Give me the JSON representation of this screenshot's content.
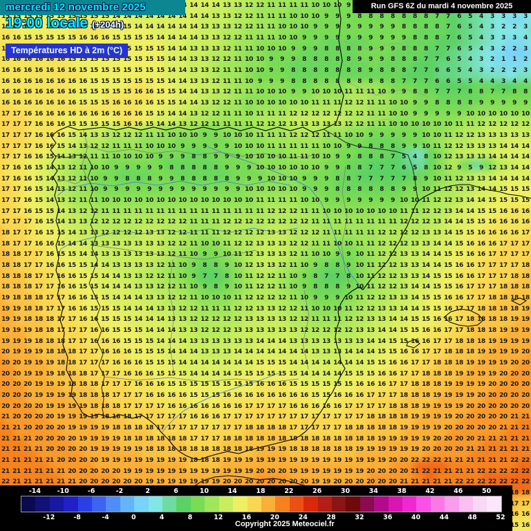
{
  "header": {
    "date_line": "mercredi 12 novembre 2025",
    "time_line": "19:00 locale",
    "time_offset": "(+204h)",
    "variable_label": "Températures HD à 2m (°C)",
    "run_label": "Run GFS 6Z du mardi 4 novembre 2025"
  },
  "footer": {
    "copyright": "Copyright 2025 Meteociel.fr"
  },
  "colors": {
    "header_text": "#00eaff",
    "date_banner_bg": "#0c8791",
    "variable_banner_bg": "#2633cf",
    "variable_banner_text": "#e6fbff",
    "run_banner_bg": "#000000",
    "run_banner_text": "#ffffff",
    "panel_bg": "#000000",
    "tick_text": "#ffffff",
    "number_text": "#1a1a1a",
    "coast_line": "#000000",
    "border_line": "#222222",
    "region_line": "#777777",
    "river_line": "#3a7bd5"
  },
  "scale": {
    "min": -16,
    "step": 2,
    "top_ticks": [
      -14,
      -10,
      -6,
      -2,
      2,
      6,
      10,
      14,
      18,
      22,
      26,
      30,
      34,
      38,
      42,
      46,
      50
    ],
    "bottom_ticks": [
      -12,
      -8,
      -4,
      0,
      4,
      8,
      12,
      16,
      20,
      24,
      28,
      32,
      36,
      40,
      44,
      48,
      52
    ],
    "cell_colors": [
      "#0a0a50",
      "#111178",
      "#1818a0",
      "#2020c8",
      "#2840e6",
      "#3c64f0",
      "#508cf5",
      "#64b4fa",
      "#78d2fa",
      "#82e6e6",
      "#6edca0",
      "#5ad264",
      "#78dc55",
      "#a0e65a",
      "#c8ee5f",
      "#eef064",
      "#fad750",
      "#faaf37",
      "#f5821e",
      "#eb5014",
      "#dc280a",
      "#b41e14",
      "#8c1414",
      "#6e0a0a",
      "#8c0a50",
      "#b40a8c",
      "#dc14b4",
      "#f028d2",
      "#fa50e6",
      "#fa78e6",
      "#fa9bed",
      "#fabef0",
      "#fad7f5",
      "#fae6fa"
    ]
  },
  "map": {
    "cols": 48,
    "grid_rows": [
      "15 15 15 15 15 15 15 15 15 15 14 14 14 14 14 14 14 14 14 14 13 13 12 12 11 11 11 11 10 10 10 9 9 8 8 8 7 7 6 6 5 5 4 4 4 4 4 4",
      "15 15 15 15 15 15 15 15 15 15 14 14 14 14 14 14 14 14 14 13 13 12 12 11 11 11 10 10 10 9 9 9 8 8 8 8 8 8 8 7 7 6 5 4 3 3 3 3",
      "15 15 15 15 15 15 15 16 16 15 15 15 14 14 14 14 14 14 13 13 13 12 12 11 11 10 10 10 9 9 9 9 9 9 9 9 8 8 8 8 7 6 5 4 3 2 2 3",
      "16 16 15 15 15 15 15 16 16 16 15 15 15 15 14 14 14 14 13 13 12 12 11 11 11 10 10 9 9 9 9 9 9 9 9 9 9 8 8 8 7 6 5 4 3 3 3 4",
      "16 16 16 16 16 15 15 15 15 15 15 15 15 15 15 14 14 13 13 13 12 11 11 10 10 10 9 9 9 8 8 8 8 9 9 9 8 8 8 7 7 6 5 4 3 2 2 3",
      "16 16 16 16 16 16 15 15 15 15 15 15 15 15 15 14 14 13 13 12 12 11 10 10 9 9 9 8 8 8 8 8 9 9 9 8 8 8 7 7 6 5 4 3 2 1 1 2",
      "16 16 16 16 16 16 16 15 15 15 15 15 15 15 15 14 14 13 13 12 11 11 10 10 9 9 8 8 8 8 8 8 8 9 8 8 8 7 7 6 6 5 4 3 2 2 2 3",
      "16 16 16 16 16 16 16 16 15 15 15 15 15 15 15 14 14 13 13 12 11 11 10 9 9 9 8 8 8 8 8 8 8 8 8 8 7 7 7 6 6 5 5 4 4 3 4 4",
      "16 16 16 16 16 16 16 15 15 15 15 15 16 16 15 15 14 14 13 13 12 11 11 10 10 10 9 9 10 10 10 11 11 11 10 9 9 8 8 7 7 7 8 8 7 7 8 8",
      "16 16 16 16 16 16 16 15 15 15 16 16 16 16 15 15 14 14 13 12 12 11 10 10 10 10 10 10 11 11 11 12 12 11 11 10 10 9 9 8 8 8 8 9 9 9 9 9",
      "17 17 16 16 16 16 16 16 16 16 16 16 16 15 15 14 14 13 12 12 11 11 10 11 11 11 12 12 12 12 12 12 12 11 11 10 10 9 9 9 9 9 10 10 10 10 10 10",
      "17 17 17 16 16 16 15 15 15 15 15 16 16 15 14 14 13 12 12 11 11 11 11 12 12 12 13 13 13 13 13 12 12 11 11 10 10 10 10 10 10 11 11 12 12 12 12 12",
      "17 17 17 16 16 16 15 14 13 13 12 12 12 11 11 10 10 10 9 9 10 10 10 11 11 11 12 12 12 11 11 10 10 9 9 9 9 9 10 10 11 12 12 13 13 13 13 13",
      "17 17 17 16 16 15 14 13 12 12 11 11 11 10 10 10 9 9 9 9 9 10 10 10 11 11 11 11 11 10 10 9 9 8 8 8 9 9 10 11 12 12 13 13 13 14 14 14",
      "17 17 16 16 15 14 13 12 11 11 10 10 10 10 9 9 9 8 8 9 9 9 10 10 10 10 11 11 10 10 9 9 8 8 8 7 5 4 8 10 12 13 13 13 14 14 14 14",
      "17 16 16 15 14 13 12 11 10 10 9 9 9 9 9 8 8 8 8 8 9 9 9 10 10 10 10 10 10 9 9 8 8 7 7 7 6 5 8 10 12 9 5 9 12 13 14 14",
      "17 16 16 15 14 13 12 11 10 9 9 8 8 8 9 9 8 8 8 8 8 9 9 9 10 10 10 9 9 9 8 8 7 7 7 7 7 8 9 10 11 12 13 13 14 14 14 14",
      "17 17 16 15 14 13 12 11 10 9 9 9 9 9 9 9 9 9 9 9 9 9 10 10 10 10 10 9 9 9 8 8 8 8 8 8 9 9 10 11 12 12 13 14 14 15 15 15",
      "17 17 16 15 14 13 12 11 11 10 10 10 10 10 10 10 10 10 10 10 10 10 10 11 11 11 11 10 10 9 9 9 9 9 9 9 10 10 11 12 12 13 14 14 15 15 15 15",
      "17 17 16 15 15 14 13 12 12 11 11 11 11 11 11 11 11 11 11 11 11 11 11 11 12 12 12 11 11 10 10 10 10 10 10 10 11 11 12 12 13 14 14 15 15 16 16 16",
      "17 17 17 16 15 14 13 13 12 12 12 12 12 12 12 12 12 11 11 11 12 12 12 12 12 12 12 12 11 11 11 11 11 11 11 11 12 12 12 13 14 14 15 15 16 16 16 16",
      "18 17 17 16 15 15 14 13 13 12 12 12 12 13 13 12 12 11 11 11 12 12 12 12 13 13 12 12 12 11 11 11 11 11 12 12 12 12 13 13 14 15 15 16 16 16 16 17",
      "18 17 17 16 16 15 14 14 13 13 13 13 13 13 13 12 12 11 10 10 11 12 12 13 13 13 12 12 11 11 10 10 11 11 12 12 12 13 13 14 14 15 16 16 16 17 17 17",
      "18 18 17 17 16 15 15 14 14 13 13 13 13 13 13 12 11 10 9 9 10 11 12 13 13 13 12 11 10 10 9 9 10 11 12 12 13 13 14 14 15 15 16 16 17 17 17 17",
      "18 18 17 17 16 16 15 15 14 14 13 13 13 13 12 11 10 9 8 8 9 10 12 13 13 12 11 10 9 8 8 9 10 11 12 12 13 13 14 14 15 16 16 17 17 17 17 18",
      "18 18 18 17 17 16 16 15 15 14 14 13 13 12 12 11 10 9 7 7 8 10 11 12 12 11 10 9 8 7 7 8 10 11 12 12 13 13 14 15 15 16 16 17 17 17 18 18",
      "18 18 18 17 17 16 16 15 15 14 14 14 13 13 12 12 11 10 9 8 9 10 11 12 12 11 10 9 8 8 8 9 10 11 12 12 13 14 14 15 15 16 17 17 17 18 18 18",
      "19 18 18 18 17 17 16 16 15 15 14 14 14 13 13 12 12 11 10 10 10 11 12 12 12 12 11 10 9 9 9 10 11 12 12 13 13 14 15 15 16 16 17 17 18 18 18 18",
      "19 19 18 18 17 17 16 16 15 15 15 14 14 14 13 13 12 12 11 11 11 12 12 13 13 12 12 11 10 10 10 11 12 12 13 13 14 14 15 15 16 17 17 18 18 18 18 19",
      "19 19 18 18 18 17 17 16 16 15 15 15 14 14 14 13 13 12 12 12 12 12 13 13 13 13 12 12 11 11 11 12 12 13 13 14 14 15 15 16 16 17 18 18 18 18 19 19",
      "19 19 19 18 18 17 17 17 16 16 15 15 15 14 14 14 13 13 12 12 12 13 13 13 13 13 13 12 12 12 12 12 13 13 14 14 15 15 16 16 17 17 18 18 18 19 19 19",
      "19 19 19 18 18 18 17 17 16 16 16 15 15 15 14 14 14 13 13 13 13 13 13 14 14 14 13 13 13 13 13 13 13 14 14 15 15 16 16 17 17 18 18 18 19 19 19 19",
      "20 19 19 19 18 18 18 17 17 16 16 16 15 15 15 14 14 14 13 13 13 14 14 14 14 14 14 14 13 13 13 14 14 14 15 15 16 16 17 17 18 18 18 19 19 19 19 20",
      "20 20 19 19 19 18 18 17 17 17 16 16 16 15 15 15 14 14 14 14 14 14 14 15 15 15 14 14 14 14 14 14 14 15 15 16 16 17 17 18 18 18 19 19 19 19 20 20",
      "20 20 19 19 19 18 18 18 17 17 17 16 16 16 15 15 15 14 14 14 14 15 15 15 15 15 15 14 14 14 14 15 15 15 16 16 17 17 18 18 18 19 19 19 19 20 20 20",
      "20 20 20 19 19 19 18 18 18 17 17 17 16 16 16 15 15 15 15 15 15 15 15 16 16 16 15 15 15 15 15 15 16 16 16 17 17 18 18 18 19 19 19 19 20 20 20 20",
      "20 20 20 19 19 19 19 18 18 18 17 17 17 16 16 16 16 15 15 15 16 16 16 16 16 16 16 16 15 15 16 16 16 17 17 17 18 18 18 19 19 19 19 20 20 20 20 20",
      "20 20 20 20 19 19 19 19 18 18 18 17 17 17 17 16 16 16 16 16 16 16 17 17 17 17 16 16 16 16 16 17 17 17 17 18 18 18 19 19 19 19 20 20 20 20 20 20",
      "21 20 20 20 20 19 19 19 19 18 18 18 17 17 17 17 17 16 16 16 17 17 17 17 17 17 17 17 17 17 17 17 17 18 18 18 18 19 19 19 19 20 20 20 20 20 21 21",
      "21 21 20 20 20 20 19 19 19 19 18 18 18 18 17 17 17 17 17 17 17 17 18 18 18 18 17 17 17 17 17 18 18 18 18 18 19 19 19 19 20 20 20 20 20 21 21 21",
      "21 21 21 20 20 20 20 19 19 19 19 18 18 18 18 18 18 17 17 17 18 18 18 18 18 18 18 18 18 18 18 18 18 18 19 19 19 19 19 20 20 20 20 21 21 21 21 21",
      "21 21 21 21 20 20 20 20 19 19 19 19 19 18 18 18 18 18 18 18 18 18 18 19 19 19 18 18 18 18 18 18 19 19 19 19 19 19 20 20 20 20 21 21 21 21 21 21",
      "21 21 21 21 21 20 20 20 20 19 19 19 19 19 19 19 19 18 18 18 19 19 19 19 19 19 19 19 19 19 19 19 19 19 19 20 20 22 22 22 21 21 21 21 21 21 22 22",
      "21 21 21 21 21 21 20 20 20 20 20 19 19 19 19 19 19 19 19 19 19 19 19 20 20 20 19 19 19 19 19 19 19 20 20 20 20 21 22 21 21 21 21 22 22 22 22 22",
      "22 21 21 21 21 21 21 20 20 20 20 20 20 19 19 19 19 19 19 19 20 20 20 20 20 20 20 20 19 19 20 20 20 20 20 20 21 21 21 21 21 22 22 22 22 22 22 22",
      "22 22 21 21 21 21 21 21 20 20 20 20 20 20 20 19 19 19 20 20 20 20 20 21 21 21 20 20 20 20 20 20 20 20 21 21 21 21 21 21 21 22 22 22 19 19 18 18",
      "22 22 22 21 21 21 21 21 21 20 20 20 20 20 20 20 20 20 20 20 21 21 21 21 21 21 21 20 20 20 21 21 21 21 21 21 21 21 21 21 22 22 22 22 18 18 17 17",
      "22 22 22 22 21 21 21 21 21 21 21 20 20 20 20 20 20 20 20 21 21 21 21 21 21 21 21 21 21 21 21 21 21 21 21 21 21 21 22 22 22 22 22 22 17 16 16 16",
      "22 22 22 22 22 21 21 21 21 21 21 21 21 21 21 21 21 21 21 21 21 21 21 21 21 21 21 21 21 21 21 21 21 21 21 21 21 22 22 22 22 22 22 22 16 16 15 16"
    ]
  }
}
